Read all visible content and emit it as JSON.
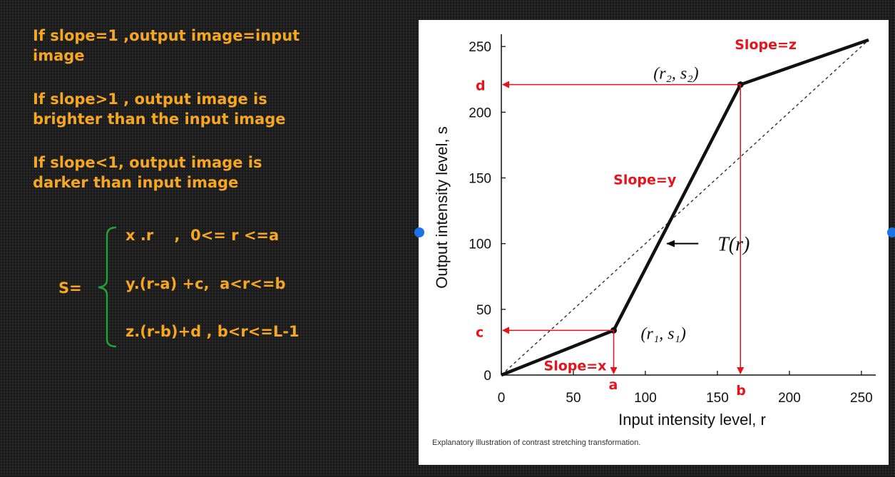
{
  "notes": {
    "slope_equal": "If slope=1 ,output image=input image",
    "slope_greater": "If slope>1 , output image is brighter than the input image",
    "slope_less": "If slope<1, output image is darker than input image"
  },
  "equation": {
    "lhs": "S=",
    "case1": "x .r    ,  0<= r <=a",
    "case2": "y.(r-a) +c,  a<r<=b",
    "case3": "z.(r-b)+d , b<r<=L-1"
  },
  "colors": {
    "text_orange": "#f5a623",
    "brace_green": "#22a33a",
    "annotation_red": "#e8121a",
    "nav_blue": "#1a73e8"
  },
  "chart_data": {
    "type": "line",
    "xlabel": "Input intensity level, r",
    "ylabel": "Output intensity level, s",
    "xlim": [
      0,
      255
    ],
    "ylim": [
      0,
      255
    ],
    "x_ticks": [
      "0",
      "50",
      "100",
      "150",
      "200",
      "250"
    ],
    "y_ticks": [
      "0",
      "50",
      "100",
      "150",
      "200",
      "250"
    ],
    "series": [
      {
        "values": [
          [
            0,
            0
          ],
          [
            78,
            34
          ],
          [
            166,
            221
          ],
          [
            255,
            255
          ]
        ]
      }
    ],
    "reference_line": [
      [
        0,
        0
      ],
      [
        255,
        255
      ]
    ],
    "point_labels": {
      "p1": "(r₁, s₁)",
      "p2": "(r₂, s₂)"
    },
    "curve_label": "T(r)",
    "annotations": {
      "slope_x": "Slope=x",
      "slope_y": "Slope=y",
      "slope_z": "Slope=z",
      "a": "a",
      "b": "b",
      "c": "c",
      "d": "d"
    },
    "caption": "Explanatory illustration of contrast stretching transformation."
  }
}
